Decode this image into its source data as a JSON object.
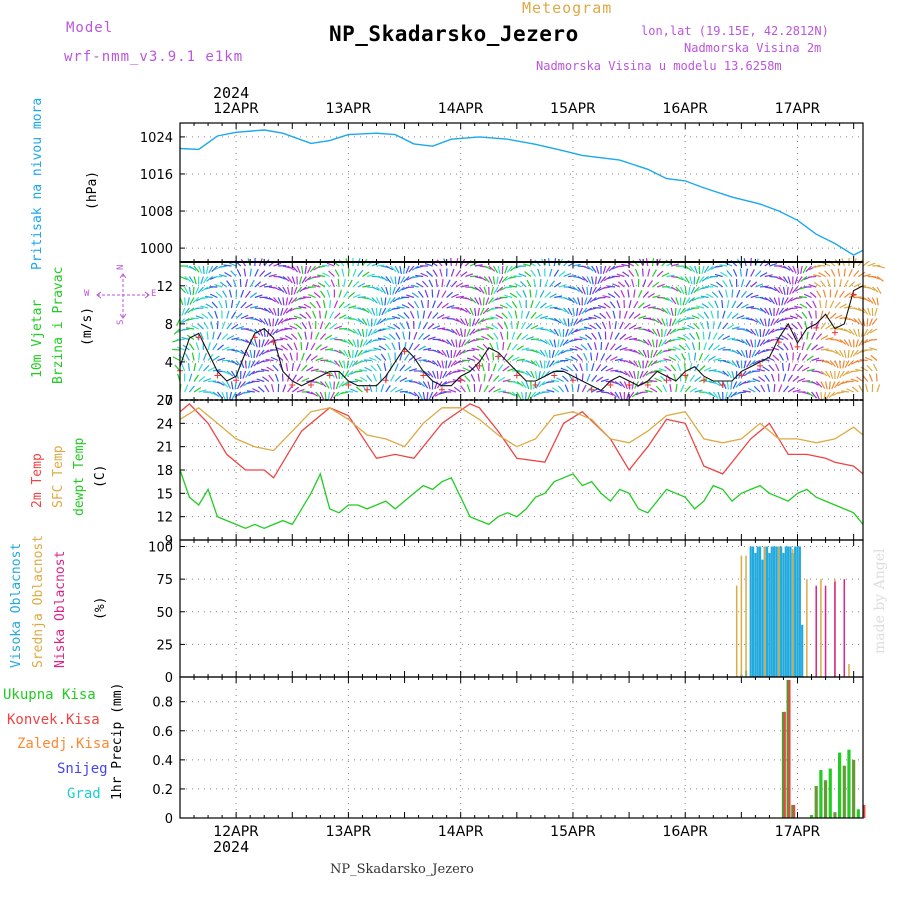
{
  "header": {
    "model_label": "Model",
    "model_name": "wrf-nmm_v3.9.1  e1km",
    "meteogram": "Meteogram",
    "title": "NP_Skadarsko_Jezero",
    "lonlat": "lon,lat (19.15E, 42.2812N)",
    "height_station": "Nadmorska Visina 2m",
    "height_model": "Nadmorska Visina u modelu 13.6258m",
    "footer": "NP_Skadarsko_Jezero",
    "credit": "made by Angel",
    "year_top": "2024",
    "year_bottom": "2024"
  },
  "colors": {
    "pressure": "#1aa8ee",
    "temp2m": "#ee4444",
    "sfc": "#ddaa44",
    "dewpt": "#22cc22",
    "high_cloud": "#22aadd",
    "mid_cloud": "#ddaa44",
    "low_cloud": "#dd2288",
    "total_precip": "#22cc22",
    "conv_precip": "#ee4444",
    "frozen_precip": "#ff8833",
    "snow": "#4444ee",
    "graupel": "#22cccc",
    "purple_text": "#bb55dd"
  },
  "panel_labels": {
    "pressure": [
      "Pritisak na nivou mora",
      "(hPa)"
    ],
    "wind": [
      "10m Vjetar",
      "Brzina i Pravac",
      "(m/s)"
    ],
    "compass": {
      "n": "N",
      "s": "S",
      "e": "E",
      "w": "W"
    },
    "temp": [
      "2m Temp",
      "SFC Temp",
      "dewpt Temp",
      "(C)"
    ],
    "cloud": [
      "Visoka Oblacnost",
      "Srednja Oblacnost",
      "Niska  Oblacnost",
      "(%)"
    ],
    "precip_legend": [
      "Ukupna Kisa",
      "Konvek.Kisa",
      "Zaledj.Kisa",
      "Snijeg",
      "Grad"
    ],
    "precip_axis": "1hr Precip (mm)"
  },
  "chart_data": [
    {
      "type": "line",
      "name": "pressure",
      "ylabel": "(hPa)",
      "ylim": [
        997,
        1027
      ],
      "yticks": [
        1000,
        1008,
        1016,
        1024
      ],
      "xlim": [
        0,
        146
      ],
      "x_dates": [
        "12APR",
        "13APR",
        "14APR",
        "15APR",
        "16APR",
        "17APR"
      ],
      "x_date_hours": [
        12,
        36,
        60,
        84,
        108,
        132
      ],
      "grid": true,
      "series": [
        {
          "name": "Pritisak na nivou mora",
          "x": [
            0,
            4,
            8,
            12,
            18,
            22,
            28,
            32,
            36,
            42,
            46,
            50,
            54,
            58,
            64,
            70,
            76,
            82,
            86,
            94,
            100,
            104,
            108,
            112,
            118,
            124,
            128,
            132,
            136,
            140,
            144,
            146
          ],
          "y": [
            1021.5,
            1021.3,
            1024.2,
            1025.0,
            1025.5,
            1024.8,
            1022.6,
            1023.2,
            1024.5,
            1024.8,
            1024.5,
            1022.5,
            1022.0,
            1023.5,
            1024.0,
            1023.5,
            1022.4,
            1021.0,
            1020.0,
            1019.0,
            1017.0,
            1015.0,
            1014.5,
            1013.0,
            1011.0,
            1009.5,
            1008.0,
            1006.0,
            1003.0,
            1001.0,
            998.5,
            999.5
          ]
        }
      ]
    },
    {
      "type": "line",
      "name": "wind",
      "ylabel": "(m/s)",
      "ylim": [
        0,
        14.5
      ],
      "yticks": [
        0,
        4,
        8,
        12
      ],
      "xlim": [
        0,
        146
      ],
      "grid": true,
      "series": [
        {
          "name": "wind speed",
          "x": [
            0,
            2,
            4,
            6,
            8,
            10,
            12,
            14,
            16,
            18,
            20,
            22,
            24,
            26,
            28,
            30,
            32,
            34,
            36,
            38,
            40,
            42,
            44,
            46,
            48,
            50,
            52,
            54,
            56,
            58,
            60,
            62,
            64,
            66,
            68,
            70,
            72,
            74,
            76,
            78,
            80,
            82,
            84,
            86,
            88,
            90,
            92,
            94,
            96,
            98,
            100,
            102,
            104,
            106,
            108,
            110,
            112,
            114,
            116,
            118,
            120,
            122,
            124,
            126,
            128,
            130,
            132,
            134,
            136,
            138,
            140,
            142,
            144,
            146
          ],
          "y": [
            3.5,
            6.5,
            7.0,
            5.0,
            3.0,
            2.0,
            2.5,
            5.0,
            7.0,
            7.5,
            6.5,
            3.0,
            2.0,
            1.5,
            2.0,
            2.5,
            3.0,
            3.0,
            2.0,
            1.5,
            1.5,
            1.5,
            2.5,
            4.0,
            5.5,
            4.5,
            3.0,
            2.0,
            1.5,
            1.5,
            2.5,
            3.0,
            4.0,
            5.5,
            5.0,
            4.0,
            3.0,
            2.0,
            2.0,
            2.5,
            3.0,
            3.0,
            2.5,
            2.0,
            1.5,
            1.0,
            2.0,
            2.5,
            2.0,
            1.5,
            2.0,
            3.0,
            2.5,
            2.0,
            3.0,
            3.5,
            2.5,
            2.0,
            2.0,
            2.0,
            3.0,
            3.5,
            4.0,
            4.5,
            6.5,
            8.0,
            6.0,
            7.5,
            8.0,
            9.0,
            7.5,
            8.0,
            11.5,
            12.0
          ]
        }
      ]
    },
    {
      "type": "line",
      "name": "temperature",
      "ylabel": "(C)",
      "ylim": [
        9,
        27
      ],
      "yticks": [
        9,
        12,
        15,
        18,
        21,
        24,
        27
      ],
      "xlim": [
        0,
        146
      ],
      "grid": true,
      "series": [
        {
          "name": "2m Temp",
          "x": [
            0,
            2,
            6,
            10,
            14,
            18,
            20,
            26,
            32,
            36,
            42,
            46,
            50,
            56,
            62,
            64,
            68,
            72,
            78,
            82,
            86,
            92,
            96,
            100,
            104,
            108,
            112,
            116,
            122,
            126,
            130,
            134,
            138,
            140,
            144,
            146
          ],
          "y": [
            25.5,
            26.5,
            24.0,
            20.0,
            18.0,
            18.0,
            17.0,
            23.0,
            26.0,
            25.0,
            19.5,
            20.0,
            19.5,
            24.0,
            26.5,
            26.0,
            23.0,
            19.5,
            19.0,
            24.0,
            25.5,
            22.0,
            18.0,
            21.0,
            24.5,
            24.0,
            18.5,
            17.5,
            22.0,
            24.0,
            20.0,
            20.0,
            19.5,
            19.0,
            18.5,
            17.5
          ]
        },
        {
          "name": "SFC Temp",
          "x": [
            0,
            4,
            8,
            12,
            16,
            20,
            24,
            28,
            32,
            36,
            40,
            44,
            48,
            52,
            56,
            60,
            64,
            68,
            72,
            76,
            80,
            84,
            88,
            92,
            96,
            100,
            104,
            108,
            112,
            116,
            120,
            124,
            128,
            132,
            136,
            140,
            144,
            146
          ],
          "y": [
            24.5,
            26.0,
            24.0,
            22.0,
            21.0,
            20.5,
            23.0,
            25.5,
            26.0,
            24.5,
            22.5,
            22.0,
            21.0,
            24.0,
            26.0,
            26.0,
            24.5,
            22.5,
            21.0,
            22.0,
            25.0,
            25.5,
            24.5,
            22.0,
            21.5,
            23.0,
            25.0,
            25.5,
            22.0,
            21.5,
            22.0,
            24.0,
            22.0,
            22.0,
            21.5,
            22.0,
            23.5,
            22.5
          ]
        },
        {
          "name": "dewpt Temp",
          "x": [
            0,
            2,
            4,
            6,
            8,
            10,
            12,
            14,
            16,
            18,
            20,
            22,
            24,
            26,
            28,
            30,
            32,
            34,
            36,
            38,
            40,
            42,
            44,
            46,
            48,
            50,
            52,
            54,
            56,
            58,
            60,
            62,
            64,
            66,
            68,
            70,
            72,
            74,
            76,
            78,
            80,
            82,
            84,
            86,
            88,
            90,
            92,
            94,
            96,
            98,
            100,
            102,
            104,
            106,
            108,
            110,
            112,
            114,
            116,
            118,
            120,
            122,
            124,
            126,
            128,
            130,
            132,
            134,
            136,
            138,
            140,
            142,
            144,
            146
          ],
          "y": [
            18.0,
            14.5,
            13.5,
            15.5,
            12.0,
            11.5,
            11.0,
            10.5,
            11.0,
            10.5,
            11.0,
            11.5,
            11.0,
            13.0,
            15.0,
            17.5,
            13.0,
            12.5,
            13.5,
            13.5,
            13.0,
            13.5,
            14.0,
            13.0,
            14.0,
            15.0,
            16.0,
            15.5,
            16.5,
            17.0,
            14.5,
            12.0,
            11.5,
            11.0,
            12.0,
            12.5,
            12.0,
            13.0,
            14.5,
            15.0,
            16.5,
            17.0,
            17.5,
            16.0,
            16.5,
            15.0,
            14.0,
            15.5,
            15.0,
            13.0,
            12.5,
            14.0,
            15.5,
            15.0,
            14.5,
            13.0,
            14.0,
            16.0,
            15.5,
            14.0,
            15.0,
            15.5,
            16.0,
            15.0,
            14.5,
            14.0,
            15.0,
            15.5,
            14.5,
            14.0,
            13.5,
            13.0,
            12.5,
            11.0
          ]
        }
      ]
    },
    {
      "type": "bar",
      "name": "cloud_cover",
      "ylabel": "(%)",
      "ylim": [
        0,
        105
      ],
      "yticks": [
        0,
        25,
        50,
        75,
        100
      ],
      "xlim": [
        0,
        146
      ],
      "grid": true,
      "series": [
        {
          "name": "Visoka Oblacnost",
          "x": [
            120,
            121,
            122,
            122.5,
            123,
            123.5,
            124,
            124.5,
            125,
            125.5,
            126,
            126.5,
            127,
            127.5,
            128,
            128.5,
            129,
            129.5,
            130,
            130.5,
            131,
            131.5,
            132,
            132.5,
            133
          ],
          "y": [
            2,
            5,
            100,
            100,
            95,
            100,
            100,
            90,
            100,
            100,
            95,
            100,
            100,
            100,
            100,
            100,
            95,
            100,
            100,
            100,
            95,
            100,
            100,
            100,
            40
          ]
        },
        {
          "name": "Srednja Oblacnost",
          "x": [
            119,
            120,
            121,
            125,
            128,
            131,
            134,
            137,
            140,
            143
          ],
          "y": [
            70,
            93,
            93,
            100,
            100,
            98,
            75,
            75,
            75,
            10
          ]
        },
        {
          "name": "Niska  Oblacnost",
          "x": [
            124,
            127,
            130,
            133,
            136,
            138,
            140,
            142,
            144
          ],
          "y": [
            0,
            0,
            0,
            0,
            70,
            70,
            73,
            75,
            0
          ]
        }
      ]
    },
    {
      "type": "bar",
      "name": "precipitation",
      "ylabel": "1hr Precip (mm)",
      "ylim": [
        0,
        0.97
      ],
      "yticks": [
        0,
        0.2,
        0.4,
        0.6,
        0.8
      ],
      "xlim": [
        0,
        146
      ],
      "grid": true,
      "series": [
        {
          "name": "Ukupna Kisa",
          "x": [
            129,
            130,
            131,
            135,
            136,
            137,
            138,
            139,
            140,
            141,
            142,
            143,
            144,
            145
          ],
          "y": [
            0.73,
            0.95,
            0.09,
            0.02,
            0.22,
            0.33,
            0.26,
            0.34,
            0.04,
            0.45,
            0.36,
            0.47,
            0.4,
            0.06
          ]
        },
        {
          "name": "Konvek.Kisa",
          "x": [
            129,
            130,
            131,
            146
          ],
          "y": [
            0.73,
            0.95,
            0.09,
            0.09
          ]
        }
      ]
    }
  ]
}
